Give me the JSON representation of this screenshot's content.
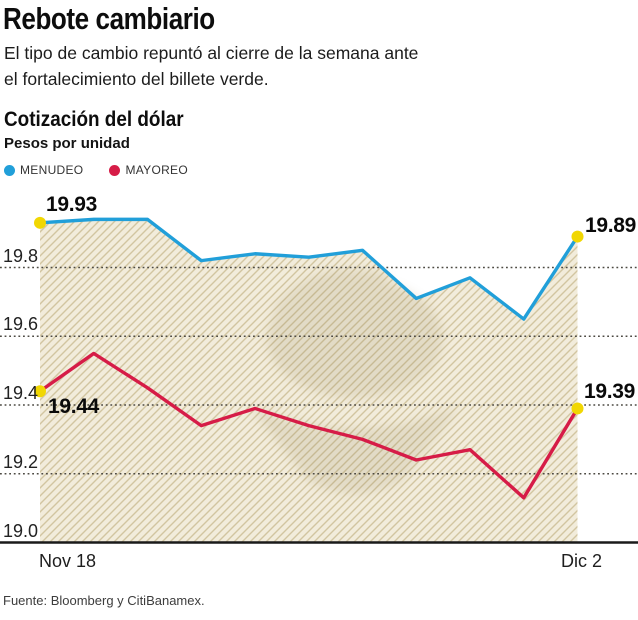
{
  "header": {
    "title": "Rebote cambiario",
    "subtitle_line1": "El tipo de cambio repuntó al cierre de la semana ante",
    "subtitle_line2": "el fortalecimiento del billete verde."
  },
  "footer": {
    "source": "Fuente: Bloomberg y CitiBanamex."
  },
  "chart_data": {
    "type": "line",
    "title": "Cotización del dólar",
    "ylabel": "Pesos por unidad",
    "legend_position": "top-left",
    "grid": "horizontal-dotted",
    "ylim": [
      19.0,
      20.0
    ],
    "yticks": [
      "19.8",
      "19.6",
      "19.4",
      "19.2",
      "19.0"
    ],
    "x_axis": {
      "first_label": "Nov 18",
      "last_label": "Dic 2",
      "n_points": 11
    },
    "series": [
      {
        "name": "MENUDEO",
        "color": "#219fd9",
        "values": [
          19.93,
          19.94,
          19.94,
          19.82,
          19.84,
          19.83,
          19.85,
          19.71,
          19.77,
          19.65,
          19.89
        ],
        "first_point_label": "19.93",
        "last_point_label": "19.89",
        "area_fill": "hatched-beige"
      },
      {
        "name": "MAYOREO",
        "color": "#d61c47",
        "values": [
          19.44,
          19.55,
          19.45,
          19.34,
          19.39,
          19.34,
          19.3,
          19.24,
          19.27,
          19.13,
          19.39
        ],
        "first_point_label": "19.44",
        "last_point_label": "19.39"
      }
    ],
    "endpoint_marker_color": "#f1d702",
    "hatch_background": "#f2ecdb",
    "hatch_line_color": "#d2c5a0",
    "gridline_color": "#4d4a43",
    "axis_color": "#1a1a1a"
  }
}
